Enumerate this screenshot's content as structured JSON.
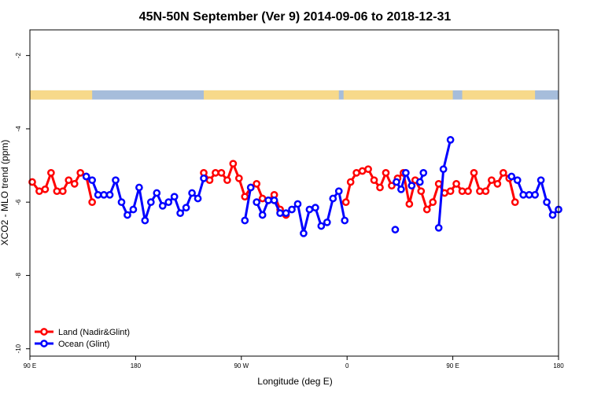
{
  "chart_data": {
    "type": "line",
    "title": "45N-50N September (Ver 9)   2014-09-06 to 2018-12-31",
    "xlabel": "Longitude (deg E)",
    "ylabel": "XCO2 - MLO trend (ppm)",
    "x_range": [
      90,
      540
    ],
    "y_range": [
      -10.2,
      -1.3
    ],
    "x_ticks": [
      {
        "value": 90,
        "label": "90 E"
      },
      {
        "value": 180,
        "label": "180"
      },
      {
        "value": 270,
        "label": "90 W"
      },
      {
        "value": 360,
        "label": "0"
      },
      {
        "value": 450,
        "label": "90 E"
      },
      {
        "value": 540,
        "label": "180"
      }
    ],
    "y_ticks": [
      {
        "value": -2,
        "label": "-2"
      },
      {
        "value": -4,
        "label": "-4"
      },
      {
        "value": -6,
        "label": "-6"
      },
      {
        "value": -8,
        "label": "-8"
      },
      {
        "value": -10,
        "label": "-10"
      }
    ],
    "legend_position": "bottom-left",
    "land_ocean_strip": {
      "y_range": [
        -3.2,
        -2.95
      ],
      "land_color": "#f7d98a",
      "ocean_color": "#a6bddb",
      "land_segments": [
        [
          90,
          143
        ],
        [
          238,
          353
        ],
        [
          357,
          450
        ],
        [
          458,
          520
        ]
      ]
    },
    "series": [
      {
        "name": "Land (Nadir&Glint)",
        "color": "#ff0000",
        "segments": [
          [
            [
              92,
              -5.45
            ],
            [
              98,
              -5.7
            ],
            [
              103,
              -5.65
            ],
            [
              108,
              -5.2
            ],
            [
              113,
              -5.7
            ],
            [
              118,
              -5.7
            ],
            [
              123,
              -5.4
            ],
            [
              128,
              -5.5
            ],
            [
              133,
              -5.2
            ],
            [
              138,
              -5.3
            ],
            [
              143,
              -6.0
            ]
          ],
          [
            [
              238,
              -5.2
            ],
            [
              243,
              -5.4
            ],
            [
              248,
              -5.2
            ],
            [
              253,
              -5.2
            ],
            [
              258,
              -5.4
            ],
            [
              263,
              -4.95
            ],
            [
              268,
              -5.35
            ],
            [
              273,
              -5.85
            ],
            [
              278,
              -5.6
            ],
            [
              283,
              -5.5
            ],
            [
              288,
              -5.9
            ],
            [
              293,
              -5.95
            ],
            [
              298,
              -5.8
            ],
            [
              303,
              -6.2
            ],
            [
              308,
              -6.35
            ]
          ],
          [
            [
              359,
              -6.0
            ],
            [
              363,
              -5.45
            ],
            [
              368,
              -5.2
            ],
            [
              373,
              -5.15
            ],
            [
              378,
              -5.1
            ],
            [
              383,
              -5.4
            ],
            [
              388,
              -5.6
            ],
            [
              393,
              -5.2
            ],
            [
              398,
              -5.55
            ],
            [
              403,
              -5.35
            ],
            [
              408,
              -5.2
            ],
            [
              413,
              -6.05
            ],
            [
              418,
              -5.4
            ],
            [
              423,
              -5.7
            ],
            [
              428,
              -6.2
            ],
            [
              433,
              -6.0
            ],
            [
              438,
              -5.5
            ],
            [
              443,
              -5.75
            ],
            [
              448,
              -5.7
            ],
            [
              453,
              -5.5
            ],
            [
              458,
              -5.7
            ],
            [
              463,
              -5.7
            ],
            [
              468,
              -5.2
            ],
            [
              473,
              -5.7
            ],
            [
              478,
              -5.7
            ],
            [
              483,
              -5.4
            ],
            [
              488,
              -5.5
            ],
            [
              493,
              -5.2
            ],
            [
              498,
              -5.35
            ],
            [
              503,
              -6.0
            ]
          ]
        ]
      },
      {
        "name": "Ocean (Glint)",
        "color": "#0000ff",
        "segments": [
          [
            [
              138,
              -5.3
            ],
            [
              143,
              -5.4
            ],
            [
              148,
              -5.8
            ],
            [
              153,
              -5.8
            ],
            [
              158,
              -5.8
            ],
            [
              163,
              -5.4
            ],
            [
              168,
              -6.0
            ],
            [
              173,
              -6.35
            ],
            [
              178,
              -6.2
            ],
            [
              183,
              -5.6
            ],
            [
              188,
              -6.5
            ],
            [
              193,
              -6.0
            ],
            [
              198,
              -5.75
            ],
            [
              203,
              -6.1
            ],
            [
              208,
              -6.0
            ],
            [
              213,
              -5.85
            ],
            [
              218,
              -6.3
            ],
            [
              223,
              -6.15
            ],
            [
              228,
              -5.75
            ],
            [
              233,
              -5.9
            ],
            [
              238,
              -5.35
            ]
          ],
          [
            [
              273,
              -6.5
            ],
            [
              278,
              -5.6
            ]
          ],
          [
            [
              283,
              -6.0
            ],
            [
              288,
              -6.35
            ],
            [
              293,
              -5.95
            ],
            [
              298,
              -5.95
            ],
            [
              303,
              -6.3
            ],
            [
              308,
              -6.3
            ],
            [
              313,
              -6.2
            ],
            [
              318,
              -6.05
            ],
            [
              323,
              -6.85
            ],
            [
              328,
              -6.2
            ],
            [
              333,
              -6.15
            ],
            [
              338,
              -6.65
            ],
            [
              343,
              -6.55
            ],
            [
              348,
              -5.9
            ],
            [
              353,
              -5.7
            ],
            [
              358,
              -6.5
            ]
          ],
          [
            [
              402,
              -5.45
            ],
            [
              406,
              -5.65
            ],
            [
              410,
              -5.2
            ],
            [
              415,
              -5.55
            ]
          ],
          [
            [
              422,
              -5.45
            ],
            [
              425,
              -5.2
            ]
          ],
          [
            [
              438,
              -6.7
            ],
            [
              442,
              -5.1
            ],
            [
              448,
              -4.3
            ]
          ],
          [
            [
              500,
              -5.3
            ],
            [
              505,
              -5.4
            ],
            [
              510,
              -5.8
            ],
            [
              515,
              -5.8
            ],
            [
              520,
              -5.8
            ],
            [
              525,
              -5.4
            ],
            [
              530,
              -6.0
            ],
            [
              535,
              -6.35
            ],
            [
              540,
              -6.2
            ]
          ]
        ],
        "isolated": [
          [
            401,
            -6.75
          ]
        ]
      }
    ]
  }
}
